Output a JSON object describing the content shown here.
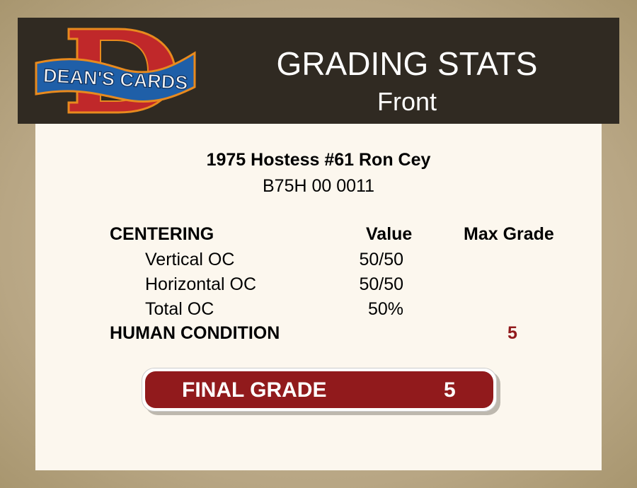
{
  "header": {
    "logo_text": "DEAN'S CARDS",
    "title": "GRADING STATS",
    "subtitle": "Front"
  },
  "card": {
    "name": "1975 Hostess #61 Ron Cey",
    "cert": "B75H 00 0011"
  },
  "table": {
    "section_label": "CENTERING",
    "value_header": "Value",
    "max_grade_header": "Max Grade",
    "rows": [
      {
        "label": "Vertical OC",
        "value": "50/50"
      },
      {
        "label": "Horizontal OC",
        "value": "50/50"
      },
      {
        "label": "Total OC",
        "value": "50%"
      }
    ],
    "human_condition_label": "HUMAN CONDITION",
    "human_condition_grade": "5"
  },
  "final": {
    "label": "FINAL GRADE",
    "value": "5"
  },
  "colors": {
    "accent": "#911a1c",
    "header_bg": "#302a22",
    "panel_bg": "#fcf7ee"
  }
}
